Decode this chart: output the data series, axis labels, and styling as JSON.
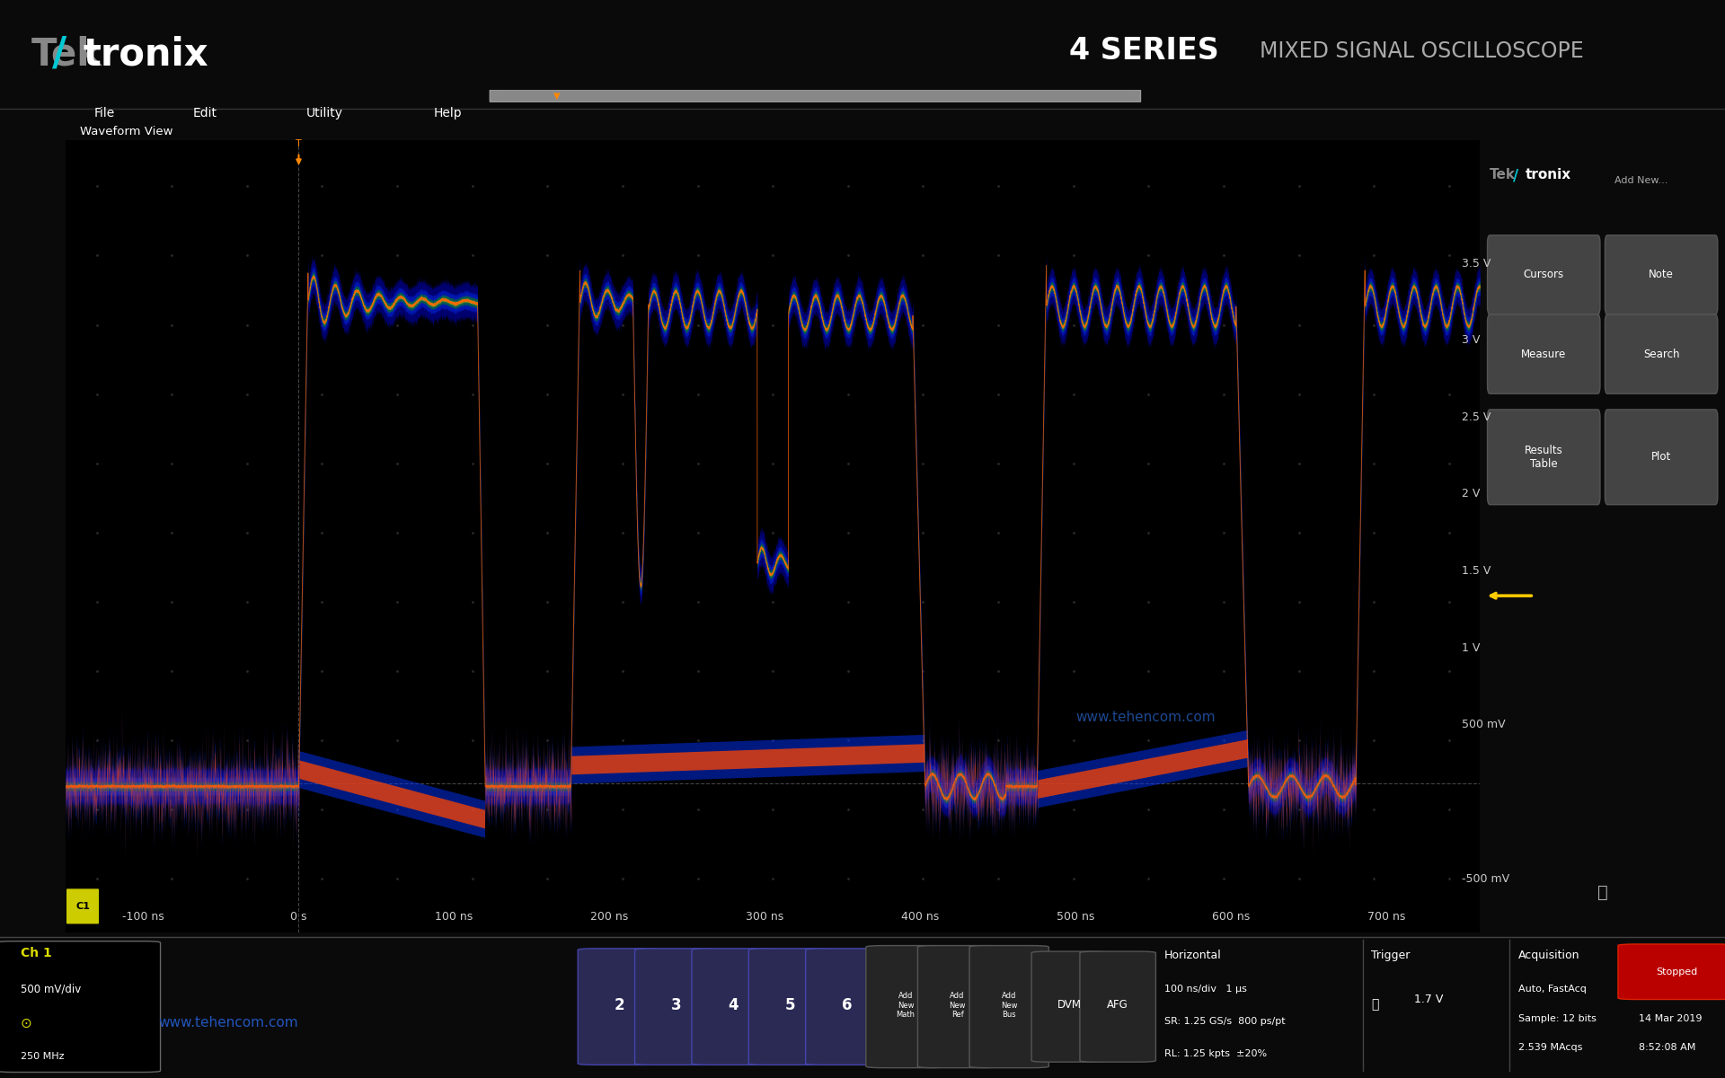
{
  "fig_width": 19.2,
  "fig_height": 12.0,
  "bg_color": "#0a0a0a",
  "osc_bg": "#000000",
  "title_text": "4 SERIES",
  "subtitle_text": "MIXED SIGNAL OSCILLOSCOPE",
  "menu_items": [
    "File",
    "Edit",
    "Utility",
    "Help"
  ],
  "waveform_view_label": "Waveform View",
  "y_labels": [
    "3.5 V",
    "3 V",
    "2.5 V",
    "2 V",
    "1.5 V",
    "1 V",
    "500 mV",
    "-500 mV"
  ],
  "y_values": [
    3.5,
    3.0,
    2.5,
    2.0,
    1.5,
    1.0,
    0.5,
    -0.5
  ],
  "x_labels": [
    "-100 ns",
    "0 s",
    "100 ns",
    "200 ns",
    "300 ns",
    "400 ns",
    "500 ns",
    "600 ns",
    "700 ns"
  ],
  "x_values": [
    -100,
    0,
    100,
    200,
    300,
    400,
    500,
    600,
    700
  ],
  "ch1_label": "Ch 1",
  "ch1_vdiv": "500 mV/div",
  "ch1_bw": "250 MHz",
  "website": "www.tehencom.com",
  "trigger_info": "1.7 V",
  "acq_mode": "Auto, FastAcq",
  "acq_bits": "Sample: 12 bits",
  "acq_count": "2.539 MAcqs",
  "date_info": "14 Mar 2019",
  "time_info": "8:52:08 AM",
  "stopped_label": "Stopped",
  "horiz_line1": "100 ns/div   1 μs",
  "horiz_line2": "SR: 1.25 GS/s  800 ps/pt",
  "horiz_line3": "RL: 1.25 kpts  ±20%"
}
